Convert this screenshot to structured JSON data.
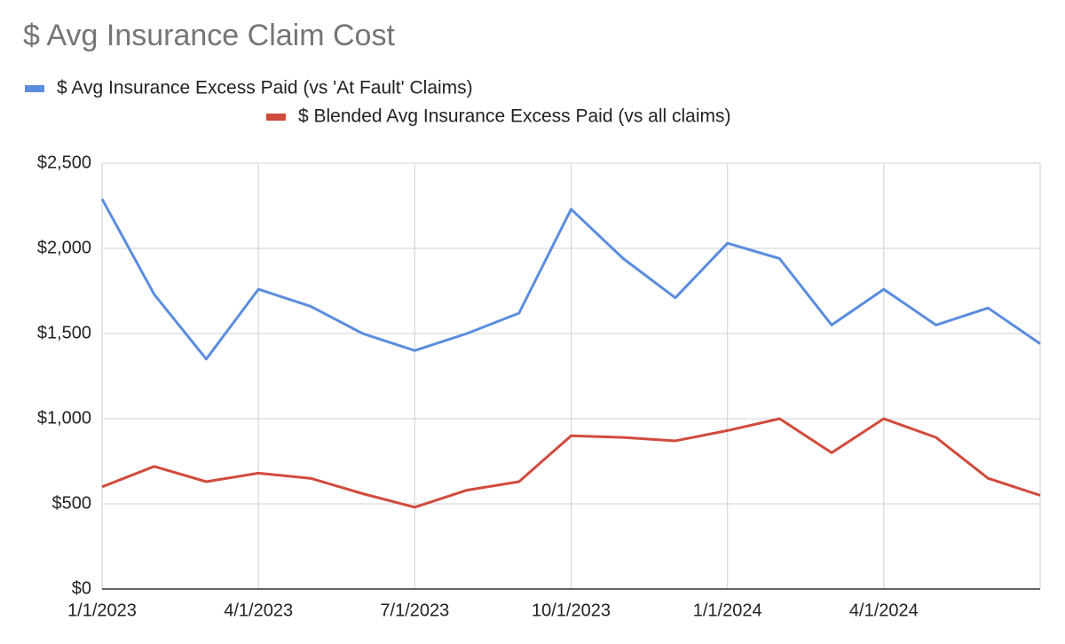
{
  "chart_data": {
    "type": "line",
    "title": "$ Avg Insurance Claim Cost",
    "categories": [
      "1/1/2023",
      null,
      null,
      "4/1/2023",
      null,
      null,
      "7/1/2023",
      null,
      null,
      "10/1/2023",
      null,
      null,
      "1/1/2024",
      null,
      null,
      "4/1/2024",
      null,
      null,
      null
    ],
    "series": [
      {
        "name": "$ Avg Insurance Excess Paid (vs 'At Fault' Claims)",
        "color": "#5b8ddf",
        "values": [
          2290,
          1730,
          1350,
          1760,
          1660,
          1500,
          1400,
          1500,
          1620,
          2230,
          1940,
          1710,
          2030,
          1940,
          1550,
          1760,
          1550,
          1650,
          1440
        ]
      },
      {
        "name": "$ Blended Avg Insurance Excess Paid (vs all claims)",
        "color": "#d14b3d",
        "values": [
          600,
          720,
          630,
          680,
          650,
          560,
          480,
          580,
          630,
          900,
          890,
          870,
          930,
          1000,
          800,
          1000,
          890,
          650,
          550
        ]
      }
    ],
    "ylim": [
      0,
      2500
    ],
    "yticks": [
      {
        "value": 0,
        "label": "$0"
      },
      {
        "value": 500,
        "label": "$500"
      },
      {
        "value": 1000,
        "label": "$1,000"
      },
      {
        "value": 1500,
        "label": "$1,500"
      },
      {
        "value": 2000,
        "label": "$2,000"
      },
      {
        "value": 2500,
        "label": "$2,500"
      }
    ],
    "grid": true
  }
}
